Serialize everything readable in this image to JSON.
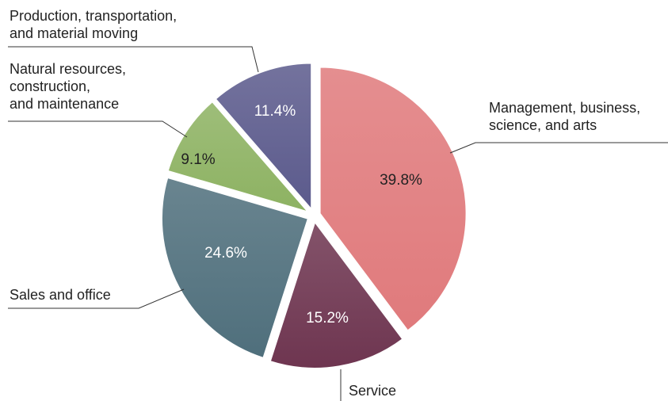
{
  "chart_data": {
    "type": "pie",
    "categories": [
      "Management, business,\nscience, and arts",
      "Service",
      "Sales and office",
      "Natural resources,\nconstruction,\nand maintenance",
      "Production, transportation,\nand material moving"
    ],
    "values": [
      39.8,
      15.2,
      24.6,
      9.1,
      11.4
    ],
    "value_labels": [
      "39.8%",
      "15.2%",
      "24.6%",
      "9.1%",
      "11.4%"
    ],
    "colors": [
      "#e07a7c",
      "#6e3550",
      "#4f6f7c",
      "#8db262",
      "#5b5a8c"
    ],
    "value_label_colors": [
      "#222222",
      "#ffffff",
      "#ffffff",
      "#222222",
      "#ffffff"
    ]
  }
}
